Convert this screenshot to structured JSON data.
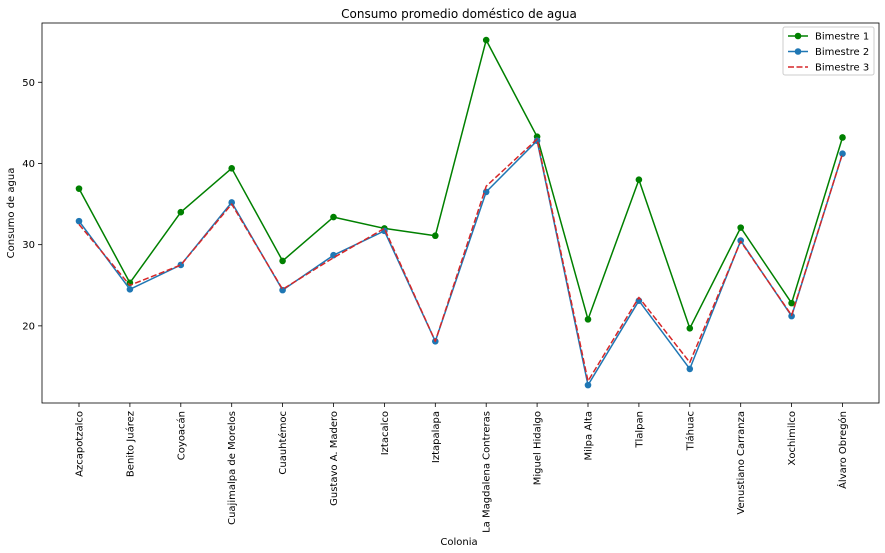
{
  "chart_data": {
    "type": "line",
    "title": "Consumo promedio doméstico de agua",
    "xlabel": "Colonia",
    "ylabel": "Consumo de agua",
    "categories": [
      "Azcapotzalco",
      "Benito Juárez",
      "Coyoacán",
      "Cuajimalpa de Morelos",
      "Cuauhtémoc",
      "Gustavo A. Madero",
      "Iztacalco",
      "Iztapalapa",
      "La Magdalena Contreras",
      "Miguel Hidalgo",
      "Milpa Alta",
      "Tlalpan",
      "Tláhuac",
      "Venustiano Carranza",
      "Xochimilco",
      "Álvaro Obregón"
    ],
    "yticks": [
      20,
      30,
      40,
      50
    ],
    "ylim": [
      10.5,
      57.3
    ],
    "grid": false,
    "legend_position": "top-right",
    "series": [
      {
        "name": "Bimestre 1",
        "color": "#008000",
        "style": "solid",
        "marker": "circle",
        "values": [
          36.9,
          25.3,
          34.0,
          39.4,
          28.0,
          33.4,
          32.0,
          31.1,
          55.2,
          43.3,
          20.8,
          38.0,
          19.7,
          32.1,
          22.8,
          43.2
        ]
      },
      {
        "name": "Bimestre 2",
        "color": "#1f77b4",
        "style": "solid",
        "marker": "circle",
        "values": [
          32.9,
          24.5,
          27.5,
          35.2,
          24.4,
          28.7,
          31.7,
          18.1,
          36.5,
          42.8,
          12.7,
          23.1,
          14.7,
          30.5,
          21.2,
          41.2
        ]
      },
      {
        "name": "Bimestre 3",
        "color": "#d62728",
        "style": "dashed",
        "marker": "none",
        "values": [
          32.5,
          25.0,
          27.5,
          35.0,
          24.5,
          28.4,
          32.0,
          18.1,
          37.2,
          43.0,
          13.2,
          23.5,
          15.5,
          30.4,
          21.3,
          41.2
        ]
      }
    ]
  }
}
